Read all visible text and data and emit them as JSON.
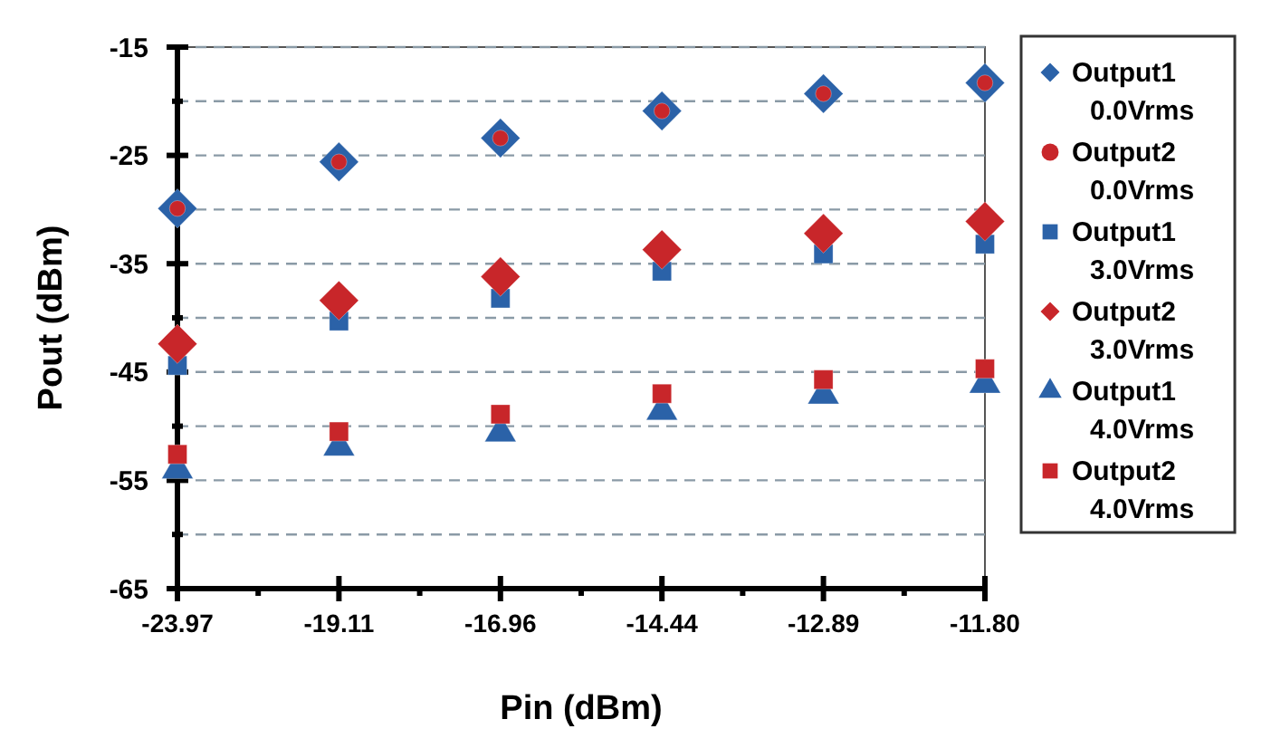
{
  "chart_data": {
    "type": "scatter",
    "xlabel": "Pin (dBm)",
    "ylabel": "Pout (dBm)",
    "categories": [
      "-23.97",
      "-19.11",
      "-16.96",
      "-14.44",
      "-12.89",
      "-11.80"
    ],
    "ylim": [
      -65,
      -15
    ],
    "yticks": [
      -65,
      {
        "value": -60,
        "label": null
      },
      -55,
      {
        "value": -50,
        "label": null
      },
      -45,
      {
        "value": -40,
        "label": null
      },
      -35,
      {
        "value": -30,
        "label": null
      },
      -25,
      {
        "value": -20,
        "label": null
      },
      -15
    ],
    "grid": "y",
    "legend": "right",
    "series": [
      {
        "name": "Output1 0.0Vrms",
        "color": "#2b62a8",
        "marker": "diamond",
        "values": [
          -29.9,
          -25.6,
          -23.4,
          -20.9,
          -19.3,
          -18.3
        ]
      },
      {
        "name": "Output2 0.0Vrms",
        "color": "#c8262a",
        "marker": "circle",
        "values": [
          -29.9,
          -25.6,
          -23.4,
          -20.9,
          -19.3,
          -18.3
        ]
      },
      {
        "name": "Output1 3.0Vrms",
        "color": "#2b62a8",
        "marker": "square",
        "values": [
          -44.4,
          -40.3,
          -38.2,
          -35.7,
          -34.1,
          -33.2
        ]
      },
      {
        "name": "Output2 3.0Vrms",
        "color": "#c8262a",
        "marker": "diamond",
        "values": [
          -42.4,
          -38.4,
          -36.2,
          -33.7,
          -32.2,
          -31.1
        ]
      },
      {
        "name": "Output1 4.0Vrms",
        "color": "#2b62a8",
        "marker": "triangle",
        "values": [
          -54,
          -51.9,
          -50.6,
          -48.6,
          -47.1,
          -46.1
        ]
      },
      {
        "name": "Output2 4.0Vrms",
        "color": "#c8262a",
        "marker": "square",
        "values": [
          -52.6,
          -50.5,
          -48.9,
          -47,
          -45.7,
          -44.7
        ]
      }
    ]
  }
}
